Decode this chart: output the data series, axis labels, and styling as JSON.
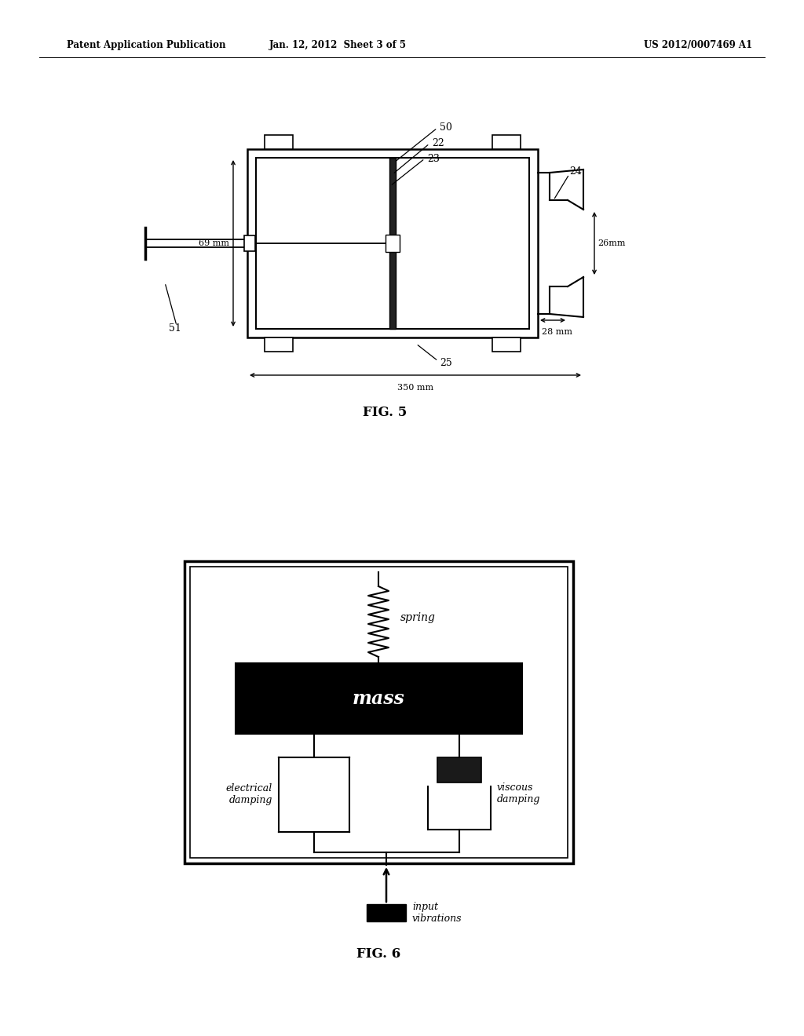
{
  "header_left": "Patent Application Publication",
  "header_center": "Jan. 12, 2012  Sheet 3 of 5",
  "header_right": "US 2012/0007469 A1",
  "fig5_label": "FIG. 5",
  "fig6_label": "FIG. 6",
  "bg_color": "#ffffff",
  "line_color": "#000000",
  "dim_69mm": "69 mm",
  "dim_350mm": "350 mm",
  "dim_26mm": "26mm",
  "dim_28mm": "28 mm",
  "label_50": "50",
  "label_22": "22",
  "label_23": "23",
  "label_24": "24",
  "label_25": "25",
  "label_51": "51",
  "spring_label": "spring",
  "mass_label": "mass",
  "elec_label": "electrical\ndamping",
  "visc_label": "viscous\ndamping",
  "input_label": "input\nvibrations"
}
